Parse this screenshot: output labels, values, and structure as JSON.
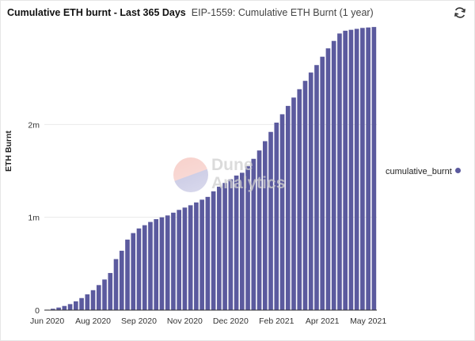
{
  "header": {
    "title": "Cumulative ETH burnt - Last 365 Days",
    "subtitle": "EIP-1559: Cumulative ETH Burnt (1 year)"
  },
  "watermark": {
    "line1": "Dune",
    "line2": "Analytics"
  },
  "chart_data": {
    "type": "bar",
    "ylabel": "ETH Burnt",
    "xlabel": "",
    "ylim": [
      0,
      3000000
    ],
    "yticks": [
      {
        "value": 0,
        "label": "0"
      },
      {
        "value": 1000000,
        "label": "1m"
      },
      {
        "value": 2000000,
        "label": "2m"
      }
    ],
    "xticks": [
      {
        "index": 0,
        "label": "Jun 2020"
      },
      {
        "index": 8,
        "label": "Aug 2020"
      },
      {
        "index": 16,
        "label": "Sep 2020"
      },
      {
        "index": 24,
        "label": "Nov 2020"
      },
      {
        "index": 32,
        "label": "Dec 2020"
      },
      {
        "index": 40,
        "label": "Feb 2021"
      },
      {
        "index": 48,
        "label": "Apr 2021"
      },
      {
        "index": 56,
        "label": "May 2021"
      }
    ],
    "grid": true,
    "legend_position": "right",
    "series": [
      {
        "name": "cumulative_burnt",
        "color": "#5b5a9e",
        "values": [
          5000,
          15000,
          28000,
          45000,
          65000,
          95000,
          130000,
          170000,
          215000,
          270000,
          330000,
          400000,
          550000,
          640000,
          760000,
          830000,
          880000,
          915000,
          950000,
          980000,
          1000000,
          1020000,
          1050000,
          1080000,
          1105000,
          1130000,
          1160000,
          1190000,
          1220000,
          1280000,
          1330000,
          1370000,
          1410000,
          1450000,
          1480000,
          1550000,
          1630000,
          1720000,
          1820000,
          1920000,
          2020000,
          2110000,
          2200000,
          2290000,
          2380000,
          2470000,
          2560000,
          2640000,
          2730000,
          2820000,
          2900000,
          2980000,
          3010000,
          3020000,
          3030000,
          3040000,
          3045000,
          3050000
        ]
      }
    ]
  }
}
